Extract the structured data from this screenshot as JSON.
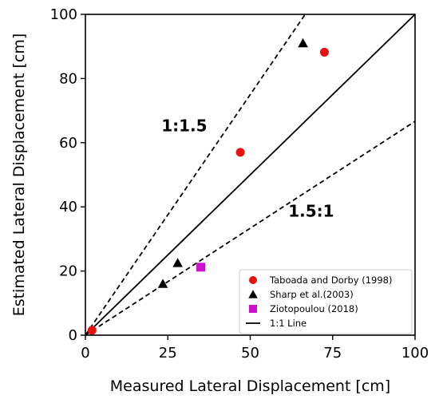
{
  "chart_data": {
    "type": "scatter",
    "xlabel": "Measured Lateral Displacement [cm]",
    "ylabel": "Estimated Lateral Displacement [cm]",
    "xlim": [
      0,
      100
    ],
    "ylim": [
      0,
      100
    ],
    "xticks": [
      0,
      25,
      50,
      75,
      100
    ],
    "yticks": [
      0,
      20,
      40,
      60,
      80,
      100
    ],
    "grid": false,
    "legend_position": "bottom-right",
    "series": [
      {
        "name": "Taboada and Dorby (1998)",
        "marker": "circle",
        "color": "#e8110f",
        "points": [
          [
            2,
            1.5
          ],
          [
            47,
            57
          ],
          [
            72.5,
            88.2
          ]
        ]
      },
      {
        "name": "Sharp et al.(2003)",
        "marker": "triangle",
        "color": "#000000",
        "points": [
          [
            23.5,
            16
          ],
          [
            28,
            22.5
          ],
          [
            66,
            91
          ]
        ]
      },
      {
        "name": "Ziotopoulou (2018)",
        "marker": "square",
        "color": "#cc10cc",
        "points": [
          [
            35,
            21.2
          ]
        ]
      }
    ],
    "reference_lines": [
      {
        "name": "1:1 Line",
        "slope": 1,
        "style": "solid",
        "in_legend": true
      },
      {
        "name": "1:1.5",
        "slope": 1.5,
        "style": "dashed",
        "in_legend": false
      },
      {
        "name": "1.5:1",
        "slope": 0.6667,
        "style": "dashed",
        "in_legend": false
      }
    ],
    "annotations": [
      {
        "text": "1:1.5",
        "x": 30,
        "y": 63.5
      },
      {
        "text": "1.5:1",
        "x": 68.5,
        "y": 37
      }
    ]
  }
}
